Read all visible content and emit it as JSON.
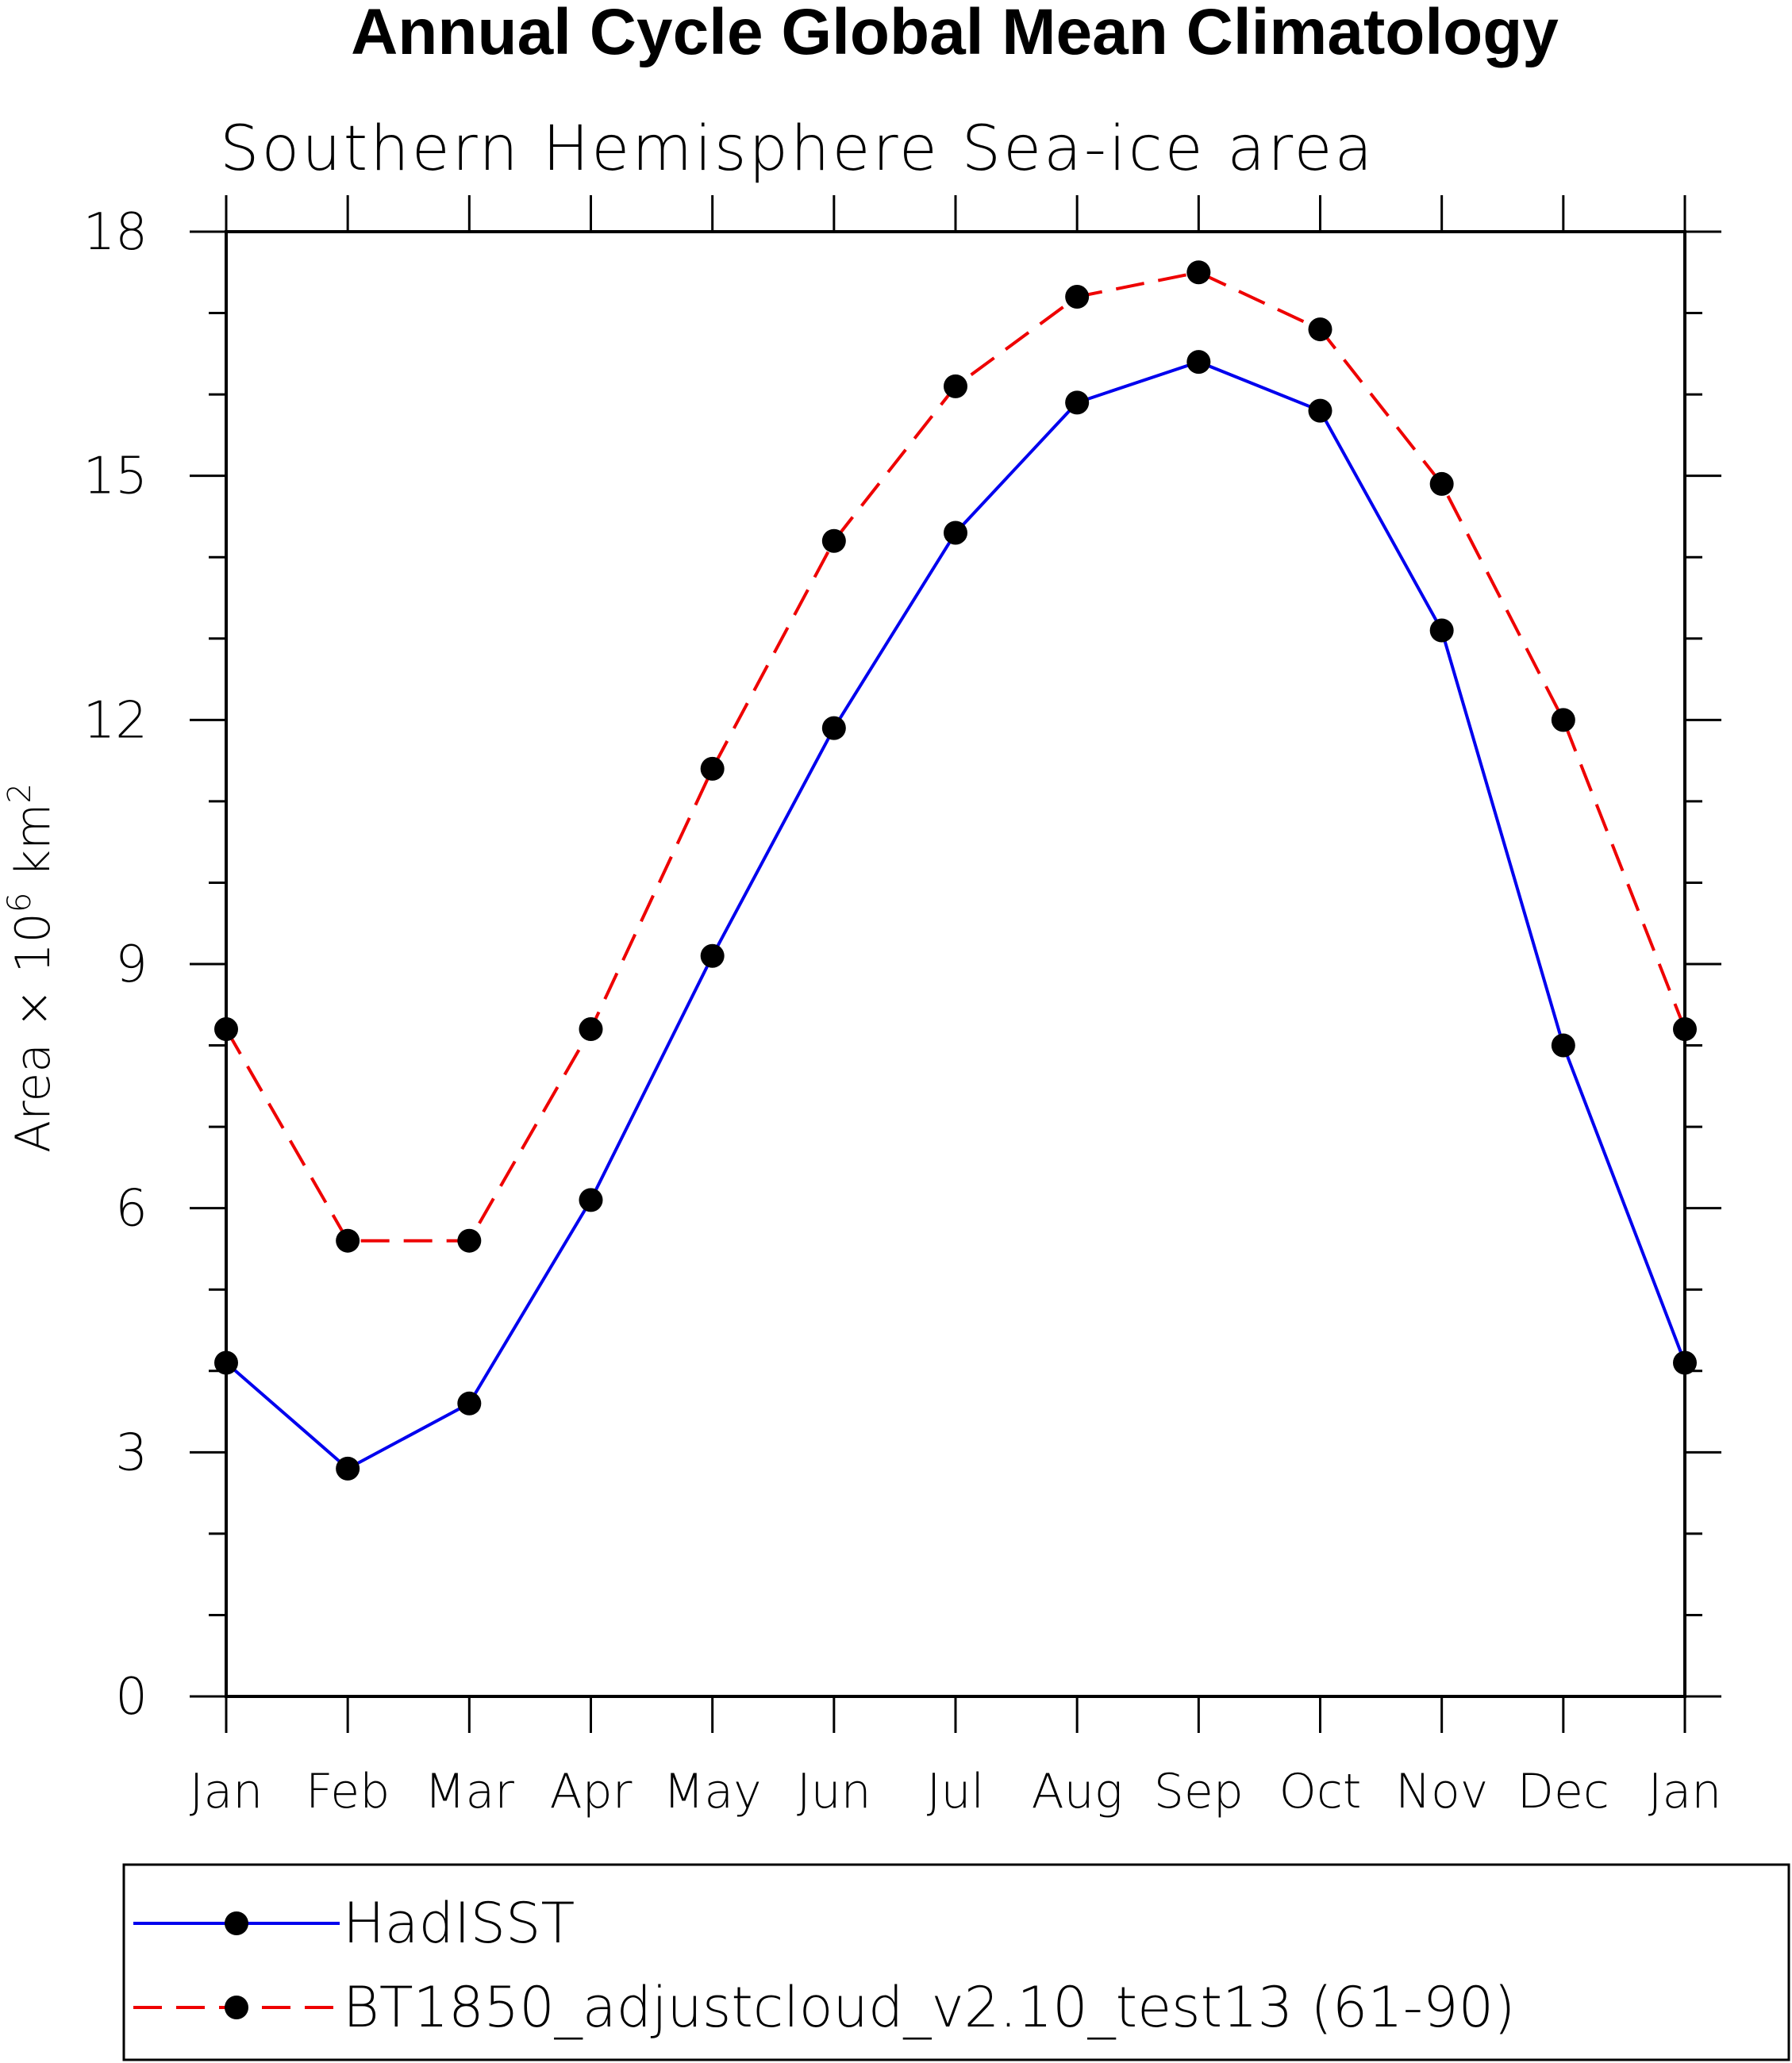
{
  "chart_data": {
    "type": "line",
    "title": "Annual Cycle Global Mean Climatology",
    "subtitle": "Southern Hemisphere Sea-ice area",
    "ylabel": "Area x 10^6 km^2",
    "ylabel_parts": {
      "base": "Area × 10",
      "exp1": "6",
      "unit": " km",
      "exp2": "2"
    },
    "xlabel": "",
    "ylim": [
      0,
      18
    ],
    "yticks": [
      0,
      3,
      6,
      9,
      12,
      15,
      18
    ],
    "ytick_labels": [
      "0",
      "3",
      "6",
      "9",
      "12",
      "15",
      "18"
    ],
    "categories": [
      "Jan",
      "Feb",
      "Mar",
      "Apr",
      "May",
      "Jun",
      "Jul",
      "Aug",
      "Sep",
      "Oct",
      "Nov",
      "Dec",
      "Jan"
    ],
    "grid": false,
    "legend_position": "bottom",
    "series": [
      {
        "name": "HadISST",
        "color": "#0000ee",
        "dash": "solid",
        "values": [
          4.1,
          2.8,
          3.6,
          6.1,
          9.1,
          11.9,
          14.3,
          15.9,
          16.4,
          15.8,
          13.1,
          8.0,
          4.1
        ]
      },
      {
        "name": "BT1850_adjustcloud_v2.10_test13 (61-90)",
        "color": "#ee0000",
        "dash": "dashed",
        "values": [
          8.2,
          5.6,
          5.6,
          8.2,
          11.4,
          14.2,
          16.1,
          17.2,
          17.5,
          16.8,
          14.9,
          12.0,
          8.2
        ]
      }
    ]
  }
}
